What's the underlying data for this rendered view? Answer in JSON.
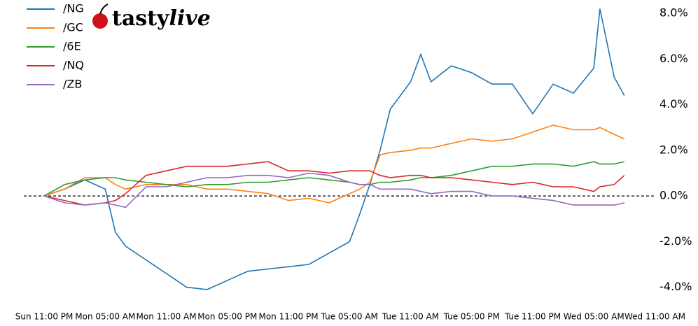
{
  "logo": {
    "brand": "tasty",
    "suffix": "live"
  },
  "chart_data": {
    "type": "line",
    "legend": "upper left",
    "zero_line": true,
    "x": [
      0,
      2,
      4,
      6,
      7,
      8,
      10,
      12,
      14,
      16,
      18,
      20,
      22,
      24,
      26,
      28,
      30,
      31,
      32,
      33,
      34,
      36,
      37,
      38,
      40,
      42,
      44,
      46,
      48,
      50,
      52,
      54,
      54.6,
      56,
      57
    ],
    "xlim": [
      -2,
      61
    ],
    "xticks": [
      {
        "value": 0,
        "label": "Sun 11:00 PM"
      },
      {
        "value": 6,
        "label": "Mon 05:00 AM"
      },
      {
        "value": 12,
        "label": "Mon 11:00 AM"
      },
      {
        "value": 18,
        "label": "Mon 05:00 PM"
      },
      {
        "value": 24,
        "label": "Mon 11:00 PM"
      },
      {
        "value": 30,
        "label": "Tue 05:00 AM"
      },
      {
        "value": 36,
        "label": "Tue 11:00 AM"
      },
      {
        "value": 42,
        "label": "Tue 05:00 PM"
      },
      {
        "value": 48,
        "label": "Tue 11:00 PM"
      },
      {
        "value": 54,
        "label": "Wed 05:00 AM"
      },
      {
        "value": 60,
        "label": "Wed 11:00 AM"
      }
    ],
    "ylim": [
      -4.9,
      8.5
    ],
    "yticks": [
      {
        "value": -4,
        "label": "-4.0%"
      },
      {
        "value": -2,
        "label": "-2.0%"
      },
      {
        "value": 0,
        "label": "0.0%"
      },
      {
        "value": 2,
        "label": "2.0%"
      },
      {
        "value": 4,
        "label": "4.0%"
      },
      {
        "value": 6,
        "label": "6.0%"
      },
      {
        "value": 8,
        "label": "8.0%"
      }
    ],
    "series": [
      {
        "name": "/NG",
        "color": "#1f77b4",
        "values": [
          0,
          0.3,
          0.7,
          0.3,
          -1.6,
          -2.2,
          -2.8,
          -3.4,
          -4.0,
          -4.1,
          -3.7,
          -3.3,
          -3.2,
          -3.1,
          -3.0,
          -2.5,
          -2.0,
          -0.8,
          0.5,
          2.0,
          3.8,
          5.0,
          6.2,
          5.0,
          5.7,
          5.4,
          4.9,
          4.9,
          3.6,
          4.9,
          4.5,
          5.6,
          8.2,
          5.2,
          4.4
        ]
      },
      {
        "name": "/GC",
        "color": "#ff7f0e",
        "values": [
          0,
          0.3,
          0.8,
          0.8,
          0.5,
          0.3,
          0.5,
          0.5,
          0.5,
          0.3,
          0.3,
          0.2,
          0.1,
          -0.2,
          -0.1,
          -0.3,
          0.1,
          0.3,
          0.6,
          1.8,
          1.9,
          2.0,
          2.1,
          2.1,
          2.3,
          2.5,
          2.4,
          2.5,
          2.8,
          3.1,
          2.9,
          2.9,
          3.0,
          2.7,
          2.5
        ]
      },
      {
        "name": "/6E",
        "color": "#2ca02c",
        "values": [
          0,
          0.5,
          0.7,
          0.8,
          0.8,
          0.7,
          0.6,
          0.5,
          0.4,
          0.5,
          0.5,
          0.6,
          0.6,
          0.7,
          0.8,
          0.7,
          0.6,
          0.5,
          0.5,
          0.6,
          0.6,
          0.7,
          0.8,
          0.8,
          0.9,
          1.1,
          1.3,
          1.3,
          1.4,
          1.4,
          1.3,
          1.5,
          1.4,
          1.4,
          1.5
        ]
      },
      {
        "name": "/NQ",
        "color": "#d62728",
        "values": [
          0,
          -0.2,
          -0.4,
          -0.3,
          -0.2,
          0.1,
          0.9,
          1.1,
          1.3,
          1.3,
          1.3,
          1.4,
          1.5,
          1.1,
          1.1,
          1.0,
          1.1,
          1.1,
          1.1,
          0.9,
          0.8,
          0.9,
          0.9,
          0.8,
          0.8,
          0.7,
          0.6,
          0.5,
          0.6,
          0.4,
          0.4,
          0.2,
          0.4,
          0.5,
          0.9
        ]
      },
      {
        "name": "/ZB",
        "color": "#9467bd",
        "values": [
          0,
          -0.3,
          -0.4,
          -0.3,
          -0.4,
          -0.5,
          0.4,
          0.4,
          0.6,
          0.8,
          0.8,
          0.9,
          0.9,
          0.8,
          1.0,
          0.9,
          0.6,
          0.5,
          0.5,
          0.3,
          0.3,
          0.3,
          0.2,
          0.1,
          0.2,
          0.2,
          0.0,
          0.0,
          -0.1,
          -0.2,
          -0.4,
          -0.4,
          -0.4,
          -0.4,
          -0.3
        ]
      }
    ]
  }
}
